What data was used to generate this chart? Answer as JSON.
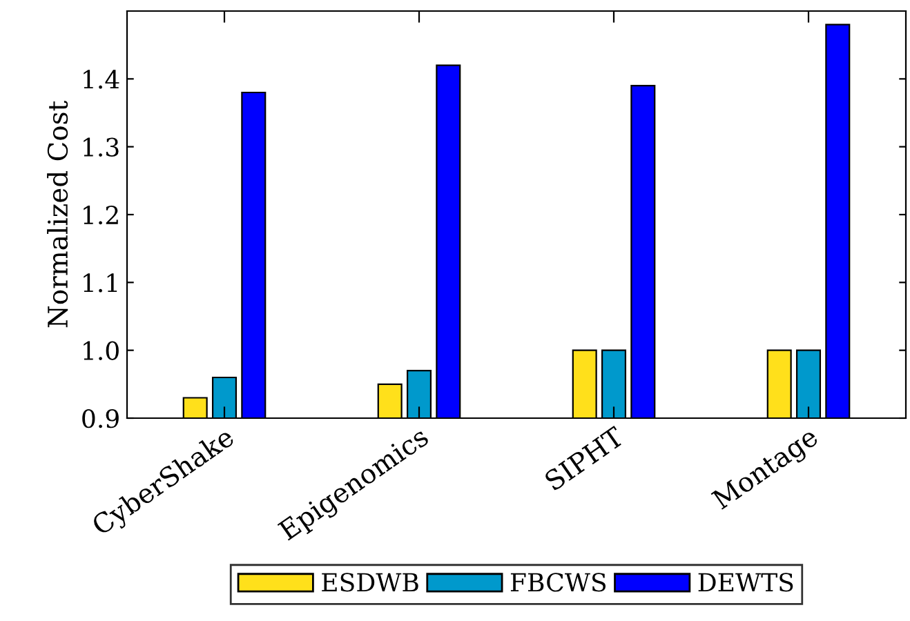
{
  "chart_data": {
    "type": "bar",
    "ylabel": "Normalized Cost",
    "categories": [
      "CyberShake",
      "Epigenomics",
      "SIPHT",
      "Montage"
    ],
    "series": [
      {
        "name": "ESDWB",
        "color": "#ffe01b",
        "values": [
          0.93,
          0.95,
          1.0,
          1.0
        ]
      },
      {
        "name": "FBCWS",
        "color": "#0099cc",
        "values": [
          0.96,
          0.97,
          1.0,
          1.0
        ]
      },
      {
        "name": "DEWTS",
        "color": "#0000ff",
        "values": [
          1.38,
          1.42,
          1.39,
          1.48
        ]
      }
    ],
    "ylim": [
      0.9,
      1.5
    ],
    "yticks": [
      {
        "value": 0.9,
        "label": "0.9"
      },
      {
        "value": 1.0,
        "label": "1.0"
      },
      {
        "value": 1.1,
        "label": "1.1"
      },
      {
        "value": 1.2,
        "label": "1.2"
      },
      {
        "value": 1.3,
        "label": "1.3"
      },
      {
        "value": 1.4,
        "label": "1.4"
      }
    ],
    "grid": false,
    "legend": "bottom"
  }
}
